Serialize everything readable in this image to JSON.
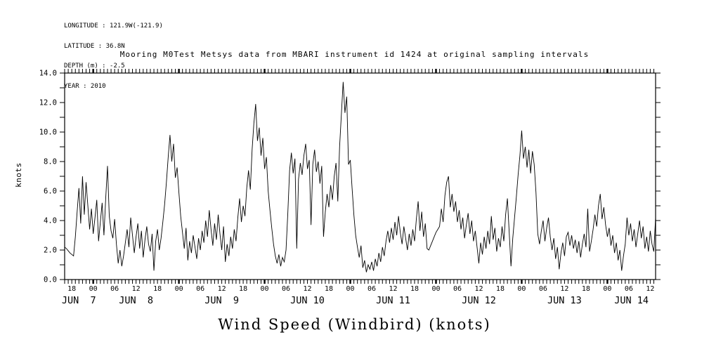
{
  "page": {
    "background": "#ffffff",
    "ink": "#000000"
  },
  "header": {
    "longitude": "LONGITUDE : 121.9W(-121.9)",
    "latitude": "LATITUDE : 36.8N",
    "depth": "DEPTH (m) : -2.5",
    "year": "YEAR : 2010"
  },
  "title": "Mooring M0Test Metsys data from MBARI instrument id 1424 at original sampling intervals",
  "y_axis_label": "knots",
  "x_axis_title": "Wind Speed (Windbird) (knots)",
  "chart_data": {
    "type": "line",
    "title": "Mooring M0Test Metsys data from MBARI instrument id 1424 at original sampling intervals",
    "ylabel": "knots",
    "xlabel": "Wind Speed (Windbird) (knots)",
    "ylim": [
      0,
      14
    ],
    "y_major_step": 2,
    "y_minor_step": 1,
    "y_tick_labels": [
      "0.0",
      "2.0",
      "4.0",
      "6.0",
      "8.0",
      "10.0",
      "12.0",
      "14.0"
    ],
    "grid": false,
    "legend": "none",
    "x_start": "JUN 7 2010 16:00",
    "x_total_hours": 165.5,
    "x_step_hours": 0.5,
    "x_hour_tick_interval": 1,
    "x_first_label_offset_hours": 2,
    "x_label_interval_hours": 6,
    "x_hour_labels": [
      "18",
      "00",
      "06",
      "12",
      "18",
      "00",
      "06",
      "12",
      "18",
      "00",
      "06",
      "12",
      "18",
      "00",
      "06",
      "12",
      "18",
      "00",
      "06",
      "12",
      "18",
      "00",
      "06",
      "12",
      "18",
      "00",
      "06",
      "12"
    ],
    "x_midnight_hours": [
      8,
      32,
      56,
      80,
      104,
      128,
      152
    ],
    "x_date_labels": [
      {
        "label": "JUN  7",
        "center_hour": 4
      },
      {
        "label": "JUN  8",
        "center_hour": 20
      },
      {
        "label": "JUN  9",
        "center_hour": 44
      },
      {
        "label": "JUN 10",
        "center_hour": 68
      },
      {
        "label": "JUN 11",
        "center_hour": 92
      },
      {
        "label": "JUN 12",
        "center_hour": 116
      },
      {
        "label": "JUN 13",
        "center_hour": 140
      },
      {
        "label": "JUN 14",
        "center_hour": 158.75
      }
    ],
    "series": [
      {
        "name": "wind_speed_knots",
        "values": [
          2.2,
          2.1,
          1.95,
          1.8,
          1.7,
          1.6,
          2.9,
          4.6,
          6.2,
          3.8,
          7.0,
          4.4,
          6.6,
          5.0,
          3.4,
          4.8,
          3.1,
          4.2,
          5.4,
          2.6,
          3.9,
          5.2,
          3.0,
          5.5,
          7.7,
          4.3,
          3.3,
          2.8,
          4.1,
          2.4,
          1.1,
          2.0,
          0.9,
          1.6,
          2.5,
          3.4,
          2.2,
          4.2,
          3.0,
          1.8,
          2.9,
          3.8,
          2.1,
          3.3,
          1.5,
          2.7,
          3.6,
          2.4,
          1.9,
          3.1,
          0.6,
          2.6,
          3.4,
          2.0,
          2.8,
          3.9,
          5.1,
          6.6,
          8.3,
          9.8,
          8.0,
          9.2,
          6.9,
          7.6,
          5.9,
          4.3,
          3.2,
          2.1,
          3.5,
          1.3,
          2.6,
          1.8,
          3.0,
          2.2,
          1.4,
          2.8,
          2.0,
          3.3,
          2.5,
          4.0,
          2.9,
          4.7,
          3.4,
          2.3,
          3.8,
          2.7,
          4.4,
          3.1,
          2.0,
          3.6,
          1.2,
          2.4,
          1.6,
          2.9,
          2.1,
          3.4,
          2.6,
          4.2,
          5.5,
          3.9,
          5.0,
          4.3,
          6.2,
          7.4,
          6.1,
          8.8,
          10.6,
          11.9,
          9.4,
          10.3,
          8.4,
          9.6,
          7.5,
          8.3,
          6.0,
          4.7,
          3.5,
          2.4,
          1.6,
          1.1,
          1.7,
          0.9,
          1.5,
          1.2,
          2.0,
          4.5,
          7.4,
          8.6,
          7.2,
          8.2,
          2.1,
          6.8,
          7.9,
          7.1,
          8.4,
          9.2,
          7.5,
          8.1,
          3.7,
          7.8,
          8.8,
          7.3,
          8.0,
          6.5,
          7.7,
          2.9,
          4.6,
          5.8,
          4.9,
          6.4,
          5.4,
          7.0,
          7.9,
          5.3,
          9.0,
          11.2,
          13.4,
          11.3,
          12.4,
          7.8,
          8.1,
          6.2,
          4.4,
          3.0,
          2.2,
          1.5,
          2.3,
          0.8,
          1.3,
          0.5,
          1.0,
          0.7,
          1.2,
          0.6,
          1.4,
          0.9,
          1.8,
          1.2,
          2.2,
          1.6,
          2.6,
          3.3,
          2.5,
          3.5,
          2.7,
          3.9,
          3.0,
          4.3,
          3.2,
          2.4,
          3.6,
          2.8,
          2.0,
          3.1,
          2.3,
          3.4,
          2.6,
          4.1,
          5.3,
          3.3,
          4.6,
          2.9,
          3.8,
          2.1,
          2.0,
          2.3,
          2.6,
          2.9,
          3.2,
          3.4,
          3.6,
          4.8,
          3.9,
          5.7,
          6.6,
          7.0,
          4.9,
          5.8,
          4.6,
          5.3,
          3.9,
          4.7,
          3.4,
          4.2,
          2.8,
          3.7,
          4.5,
          3.1,
          4.0,
          2.6,
          3.3,
          2.2,
          1.1,
          2.5,
          1.7,
          2.9,
          2.1,
          3.3,
          2.4,
          4.3,
          2.7,
          3.5,
          1.9,
          2.8,
          2.2,
          3.6,
          2.6,
          4.4,
          5.5,
          3.2,
          0.9,
          2.8,
          4.2,
          5.6,
          7.1,
          8.4,
          10.1,
          8.2,
          9.0,
          7.6,
          8.8,
          7.2,
          8.7,
          7.8,
          5.9,
          3.1,
          2.4,
          3.3,
          4.0,
          2.6,
          3.5,
          4.2,
          2.9,
          2.0,
          2.8,
          1.4,
          2.2,
          0.7,
          1.8,
          2.5,
          1.6,
          2.9,
          3.2,
          2.3,
          3.0,
          2.1,
          2.7,
          1.8,
          2.6,
          1.5,
          2.4,
          3.1,
          2.2,
          4.8,
          1.9,
          2.6,
          3.4,
          4.4,
          3.6,
          5.0,
          5.8,
          4.1,
          4.9,
          3.7,
          2.9,
          3.5,
          2.3,
          3.0,
          1.8,
          2.5,
          1.3,
          2.0,
          0.6,
          1.6,
          2.4,
          4.2,
          3.0,
          3.8,
          2.6,
          3.4,
          2.2,
          3.1,
          4.0,
          2.8,
          3.6,
          2.1,
          2.9,
          1.9,
          3.3,
          2.4,
          1.9,
          4.2
        ]
      }
    ]
  }
}
